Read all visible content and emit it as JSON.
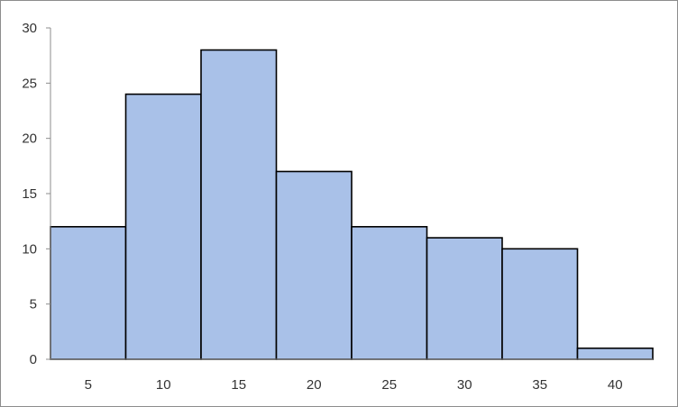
{
  "chart_data": {
    "type": "bar",
    "histogram": true,
    "categories": [
      "5",
      "10",
      "15",
      "20",
      "25",
      "30",
      "35",
      "40"
    ],
    "values": [
      12,
      24,
      28,
      17,
      12,
      11,
      10,
      1
    ],
    "title": "",
    "xlabel": "",
    "ylabel": "",
    "ylim": [
      0,
      30
    ],
    "yticks": [
      0,
      5,
      10,
      15,
      20,
      25,
      30
    ],
    "grid": false,
    "legend": "none",
    "bar_color": "#a9c1e8",
    "bar_edge_color": "#000000",
    "axis_color": "#8c8c8c"
  }
}
